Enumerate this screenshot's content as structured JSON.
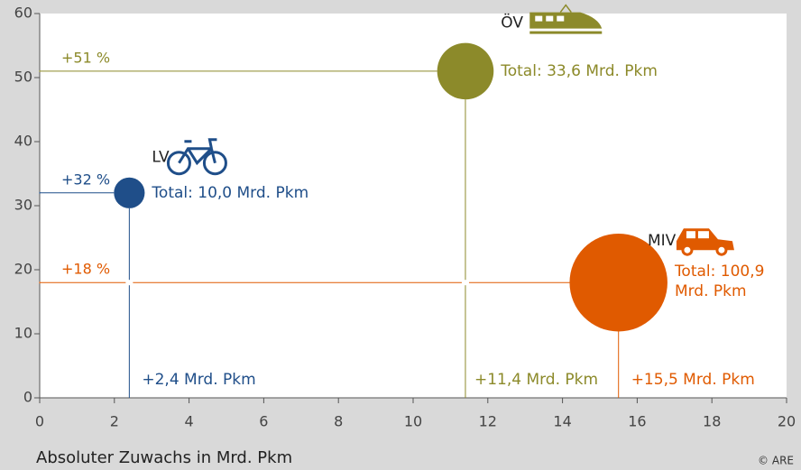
{
  "chart_data": {
    "type": "bubble",
    "x_axis_label": "Absoluter Zuwachs in Mrd. Pkm",
    "source": "© ARE",
    "names": [
      "LV",
      "ÖV",
      "MIV"
    ],
    "x": [
      2.4,
      11.4,
      15.5
    ],
    "values": [
      32,
      51,
      18
    ],
    "sizes": [
      10.0,
      33.6,
      100.9
    ],
    "colors": [
      "#1f4e89",
      "#8c8a2a",
      "#e05a00"
    ],
    "value_labels": [
      "+32 %",
      "+51 %",
      "+18 %"
    ],
    "x_labels": [
      "+2,4 Mrd. Pkm",
      "+11,4 Mrd. Pkm",
      "+15,5 Mrd. Pkm"
    ],
    "size_labels": [
      "Total: 10,0 Mrd. Pkm",
      "Total: 33,6 Mrd. Pkm",
      "Total: 100,9 Mrd. Pkm"
    ],
    "xlim": [
      0,
      20
    ],
    "xticks": [
      0,
      2,
      4,
      6,
      8,
      10,
      12,
      14,
      16,
      18,
      20
    ],
    "ylim": [
      0,
      60
    ],
    "yticks": [
      0,
      10,
      20,
      30,
      40,
      50,
      60
    ]
  }
}
